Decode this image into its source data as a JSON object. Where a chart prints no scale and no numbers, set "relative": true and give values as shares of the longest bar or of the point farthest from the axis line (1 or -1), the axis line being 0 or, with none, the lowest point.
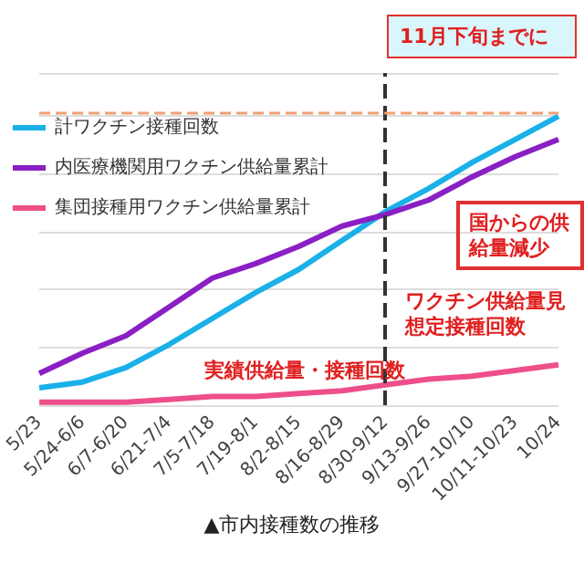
{
  "chart_data": {
    "type": "line",
    "title": "▲市内接種数の推移",
    "relative": true,
    "grid": "y",
    "legend": "top left",
    "marker": "none",
    "categories": [
      "5/23",
      "5/24-6/6",
      "6/7-6/20",
      "6/21-7/4",
      "7/5-7/18",
      "7/19-8/1",
      "8/2-8/15",
      "8/16-8/29",
      "8/30-9/12",
      "9/13-9/26",
      "9/27-10/10",
      "10/11-10/23",
      "10/24"
    ],
    "series": [
      {
        "name": "計ワクチン接種回数",
        "color": "#1ab0e8",
        "values": [
          0.06,
          0.08,
          0.13,
          0.21,
          0.3,
          0.39,
          0.47,
          0.57,
          0.67,
          0.75,
          0.84,
          0.92,
          1.0
        ]
      },
      {
        "name": "内医療機関用ワクチン供給量累計",
        "color": "#8a1fc4",
        "values": [
          0.11,
          0.18,
          0.24,
          0.34,
          0.44,
          0.49,
          0.55,
          0.62,
          0.66,
          0.71,
          0.79,
          0.86,
          0.92
        ]
      },
      {
        "name": "集団接種用ワクチン供給量累計",
        "color": "#ee4f8a",
        "values": [
          0.01,
          0.01,
          0.01,
          0.02,
          0.03,
          0.03,
          0.04,
          0.05,
          0.07,
          0.09,
          0.1,
          0.12,
          0.14
        ]
      }
    ],
    "ref_lines": [
      {
        "axis": "x",
        "value": "8/30-9/12",
        "color": "#333333",
        "line_style": "dashed"
      },
      {
        "axis": "y",
        "value": 1.01,
        "color": "#f0a070",
        "line_style": "dashed"
      }
    ],
    "annotations": [
      "11月下旬までに",
      "国からの供給量減少",
      "実績供給量・接種回数",
      "ワクチン供給量見想定接種回数"
    ]
  }
}
